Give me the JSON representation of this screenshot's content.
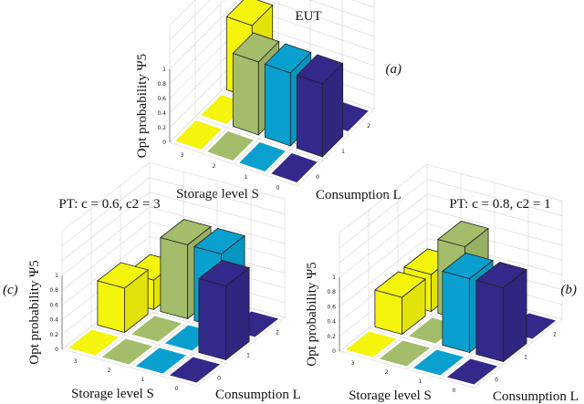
{
  "colors": {
    "S3": "#f4f40c",
    "S2": "#a3bd6a",
    "S1": "#09a0cf",
    "S0": "#33298a",
    "grid": "#dcdcdc",
    "edge": "#222222"
  },
  "chart_data": [
    {
      "type": "bar3d",
      "title": "EUT",
      "panel_label": "(a)",
      "xlabel": "Storage level S",
      "ylabel": "Consumption L",
      "zlabel": "Opt probability Ψ5",
      "storage_levels": [
        "3",
        "2",
        "1",
        "0"
      ],
      "consumption_levels": [
        "0",
        "1",
        "2"
      ],
      "zticks": [
        "0",
        "0.2",
        "0.4",
        "0.6",
        "0.8",
        "1"
      ],
      "zlim": [
        0,
        1
      ],
      "values": [
        [
          0,
          0,
          1
        ],
        [
          0,
          1,
          0
        ],
        [
          0,
          1,
          0
        ],
        [
          0,
          1,
          0
        ]
      ]
    },
    {
      "type": "bar3d",
      "title": "PT: c = 0.6, c2 = 3",
      "panel_label": "(c)",
      "xlabel": "Storage level S",
      "ylabel": "Consumption L",
      "zlabel": "Opt probability Ψ5",
      "storage_levels": [
        "3",
        "2",
        "1",
        "0"
      ],
      "consumption_levels": [
        "0",
        "1",
        "2"
      ],
      "zticks": [
        "0",
        "0.2",
        "0.4",
        "0.6",
        "0.8",
        "1"
      ],
      "zlim": [
        0,
        1
      ],
      "values": [
        [
          0,
          0.6,
          0.4
        ],
        [
          0,
          0,
          1
        ],
        [
          0,
          0,
          1
        ],
        [
          0,
          1,
          0
        ]
      ]
    },
    {
      "type": "bar3d",
      "title": "PT: c = 0.8, c2 = 1",
      "panel_label": "(b)",
      "xlabel": "Storage level S",
      "ylabel": "Consumption L",
      "zlabel": "Opt probability Ψ5",
      "storage_levels": [
        "3",
        "2",
        "1",
        "0"
      ],
      "consumption_levels": [
        "0",
        "1",
        "2"
      ],
      "zticks": [
        "0",
        "0.2",
        "0.4",
        "0.6",
        "0.8",
        "1"
      ],
      "zlim": [
        0,
        1
      ],
      "values": [
        [
          0,
          0.5,
          0.5
        ],
        [
          0,
          0,
          1
        ],
        [
          0,
          1,
          0
        ],
        [
          0,
          1,
          0
        ]
      ]
    }
  ]
}
